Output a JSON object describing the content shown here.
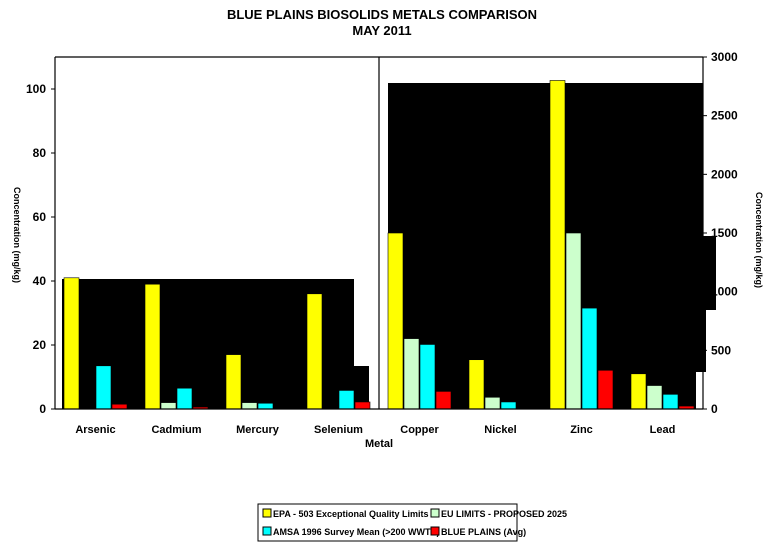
{
  "chart_data": {
    "type": "bar",
    "title": "BLUE PLAINS BIOSOLIDS METALS COMPARISON",
    "subtitle": "MAY  2011",
    "xlabel": "Metal",
    "ylabel_left": "Concentration (mg/kg)",
    "ylabel_right": "Concentration (mg/kg)",
    "left_axis": {
      "ylim": [
        0,
        110
      ],
      "ticks": [
        0,
        20,
        40,
        60,
        80,
        100
      ]
    },
    "right_axis": {
      "ylim": [
        0,
        3000
      ],
      "ticks": [
        0,
        500,
        1000,
        1500,
        2000,
        2500,
        3000
      ]
    },
    "categories": [
      "Arsenic",
      "Cadmium",
      "Mercury",
      "Selenium",
      "Copper",
      "Nickel",
      "Zinc",
      "Lead"
    ],
    "category_axis": [
      "left",
      "left",
      "left",
      "left",
      "right",
      "right",
      "right",
      "right"
    ],
    "series": [
      {
        "name": "EPA - 503 Exceptional Quality Limits",
        "color": "#ffff00",
        "values": [
          41,
          39,
          17,
          36,
          1500,
          420,
          2800,
          300
        ]
      },
      {
        "name": "EU LIMITS - PROPOSED 2025",
        "color": "#ccffcc",
        "values": [
          0,
          2,
          2,
          0,
          600,
          100,
          1500,
          200
        ]
      },
      {
        "name": "AMSA 1996 Survey Mean (>200 WWTP)",
        "color": "#00ffff",
        "values": [
          13.5,
          6.5,
          1.8,
          5.8,
          550,
          60,
          860,
          125
        ]
      },
      {
        "name": "BLUE PLAINS (Avg)",
        "color": "#ff0000",
        "values": [
          1.5,
          0.6,
          0,
          2.2,
          150,
          0,
          330,
          25
        ]
      }
    ],
    "legend_position": "bottom",
    "grid": false
  }
}
